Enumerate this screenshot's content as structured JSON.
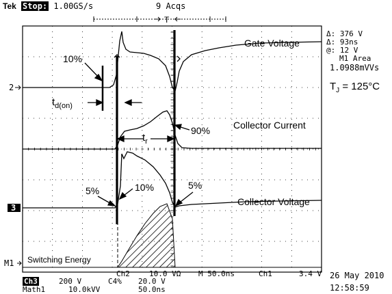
{
  "header": {
    "brand": "Tek",
    "run_state": "Stop:",
    "sample_rate": "1.00GS/s",
    "acquisitions": "9 Acqs",
    "trigger_marker": "T"
  },
  "annotations": {
    "gate_voltage": "Gate Voltage",
    "collector_current": "Collector Current",
    "collector_voltage": "Collector Voltage",
    "switching_energy": "Switching Energy",
    "pct_10_top": "10%",
    "pct_90": "90%",
    "pct_5_left": "5%",
    "pct_10_mid": "10%",
    "pct_5_right": "5%",
    "td_on_main": "t",
    "td_on_sub": "d(on)",
    "tr_main": "t",
    "tr_sub": "r"
  },
  "readout": {
    "delta_v": "Δ: 376 V",
    "delta_t": "Δ: 93ns",
    "at": "@: 12 V",
    "m1_area_label": "M1 Area",
    "m1_area_value": "1.0988mVVs",
    "tj_main": "T",
    "tj_sub": "J",
    "tj_rest": " = 125°C"
  },
  "channel_markers": {
    "ch2": "2",
    "ch3": "3",
    "m1": "M1"
  },
  "footer": {
    "row1_ch2": "Ch2",
    "row1_ch2_scale": "10.0 VΩ",
    "row1_time": "M 50.0ns",
    "row1_trig_src": "Ch1",
    "row1_trig_level": "3.4 V",
    "row2_ch3": "Ch3",
    "row2_ch3_scale": "200 V",
    "row2_ch4": "C4%",
    "row2_ch4_scale": "20.0 V",
    "row3_math": "Math1",
    "row3_math_scale": "10.0kVV",
    "row3_math_time": "50.0ns",
    "date": "26 May 2010",
    "time": "12:58:59"
  },
  "colors": {
    "trace": "#000000",
    "grid": "#000000",
    "background": "#ffffff"
  }
}
